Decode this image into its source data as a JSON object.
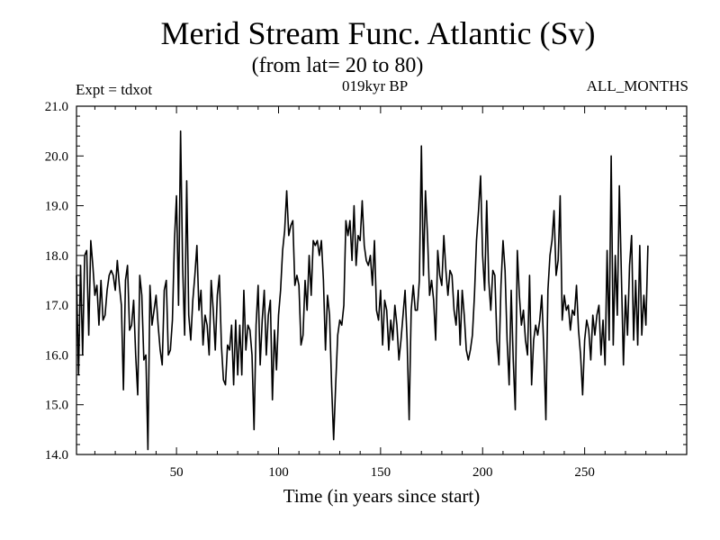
{
  "header": {
    "title": "Merid Stream Func. Atlantic (Sv)",
    "subtitle": "(from lat= 20 to 80)",
    "expt": "Expt = tdxot",
    "period": "019kyr BP",
    "months": "ALL_MONTHS"
  },
  "colors": {
    "line": "#000000",
    "axis": "#000000",
    "background": "#ffffff"
  },
  "chart_data": {
    "type": "line",
    "title": "Merid Stream Func. Atlantic (Sv)",
    "subtitle": "(from lat= 20 to 80)",
    "xlabel": "Time (in years since start)",
    "ylabel": "",
    "xlim": [
      1,
      300
    ],
    "ylim": [
      14.0,
      21.0
    ],
    "xticks": [
      50,
      100,
      150,
      200,
      250
    ],
    "yticks": [
      14.0,
      15.0,
      16.0,
      17.0,
      18.0,
      19.0,
      20.0,
      21.0
    ],
    "grid": false,
    "series": [
      {
        "values": [
          17.6,
          15.6,
          17.8,
          16.0,
          18.0,
          18.1,
          16.4,
          18.3,
          17.8,
          17.2,
          17.4,
          16.6,
          17.5,
          16.7,
          16.8,
          17.3,
          17.6,
          17.7,
          17.6,
          17.3,
          17.9,
          17.4,
          17.0,
          15.3,
          17.5,
          17.8,
          16.5,
          16.6,
          17.1,
          16.0,
          15.2,
          17.6,
          17.2,
          15.9,
          16.0,
          14.1,
          17.4,
          16.6,
          16.9,
          17.2,
          16.6,
          16.1,
          15.8,
          17.3,
          17.5,
          16.0,
          16.1,
          16.7,
          18.3,
          19.2,
          17.0,
          20.5,
          17.8,
          16.4,
          19.5,
          16.8,
          16.3,
          17.1,
          17.6,
          18.2,
          16.9,
          17.3,
          16.2,
          16.8,
          16.6,
          16.0,
          17.5,
          16.9,
          16.1,
          17.2,
          17.6,
          16.2,
          15.5,
          15.4,
          16.2,
          16.1,
          16.6,
          15.4,
          16.7,
          15.6,
          16.6,
          15.6,
          17.3,
          16.1,
          16.6,
          16.5,
          16.0,
          14.5,
          16.6,
          17.4,
          15.8,
          16.7,
          17.3,
          16.0,
          16.8,
          17.1,
          15.1,
          16.5,
          15.7,
          16.8,
          17.3,
          18.1,
          18.5,
          19.3,
          18.4,
          18.6,
          18.7,
          17.4,
          17.6,
          17.4,
          16.2,
          16.4,
          17.5,
          16.9,
          18.0,
          17.2,
          18.3,
          18.2,
          18.3,
          18.0,
          18.3,
          17.5,
          16.1,
          17.2,
          16.8,
          15.4,
          14.3,
          15.4,
          16.4,
          16.7,
          16.6,
          17.0,
          18.7,
          18.4,
          18.7,
          17.9,
          19.0,
          17.8,
          18.4,
          18.3,
          19.1,
          18.2,
          17.9,
          17.8,
          18.0,
          17.4,
          18.3,
          16.9,
          16.7,
          17.3,
          16.2,
          17.1,
          16.9,
          16.1,
          16.7,
          16.3,
          17.0,
          16.6,
          15.9,
          16.3,
          16.8,
          17.3,
          16.3,
          14.7,
          16.9,
          17.4,
          16.9,
          16.9,
          17.5,
          20.2,
          17.6,
          19.3,
          18.4,
          17.2,
          17.5,
          17.1,
          16.3,
          18.1,
          17.6,
          17.4,
          18.4,
          17.7,
          17.2,
          17.7,
          17.6,
          16.9,
          16.6,
          17.3,
          16.2,
          17.3,
          16.8,
          16.1,
          15.9,
          16.1,
          16.4,
          17.2,
          18.3,
          18.9,
          19.6,
          18.0,
          17.3,
          19.1,
          17.5,
          16.9,
          17.7,
          17.6,
          16.3,
          15.8,
          17.4,
          18.3,
          17.7,
          16.3,
          15.4,
          17.3,
          15.9,
          14.9,
          18.1,
          17.2,
          16.6,
          16.9,
          16.3,
          16.0,
          17.6,
          15.4,
          16.3,
          16.6,
          16.4,
          16.7,
          17.2,
          16.1,
          14.7,
          17.3,
          18.0,
          18.3,
          18.9,
          17.6,
          17.9,
          19.2,
          16.7,
          17.2,
          16.9,
          17.0,
          16.5,
          16.9,
          16.8,
          17.4,
          16.5,
          16.0,
          15.2,
          16.3,
          16.7,
          16.5,
          15.9,
          16.8,
          16.4,
          16.8,
          17.0,
          16.0,
          16.7,
          15.8,
          18.1,
          16.3,
          20.0,
          16.2,
          18.0,
          16.8,
          19.4,
          17.6,
          15.8,
          17.2,
          16.4,
          17.8,
          18.4,
          16.3,
          17.5,
          16.2,
          18.2,
          16.4,
          17.2,
          16.6,
          18.2
        ]
      }
    ]
  }
}
